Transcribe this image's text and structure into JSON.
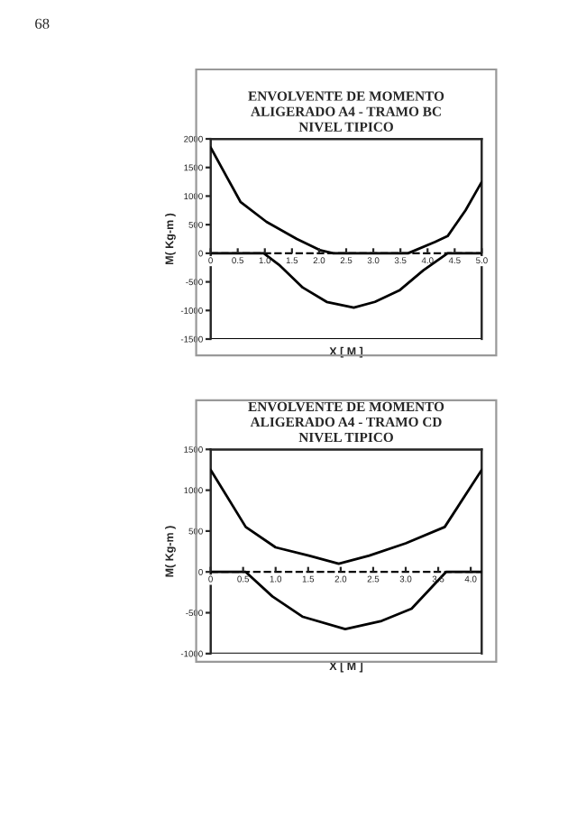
{
  "chart_data": [
    {
      "type": "line",
      "title": "ENVOLVENTE DE MOMENTO\nALIGERADO A4 - TRAMO BC\nNIVEL TIPICO",
      "xlabel": "X [ M ]",
      "ylabel": "M( Kg-m )",
      "annotations": [
        "68"
      ],
      "series": [
        {
          "color": "#000000",
          "x": [
            0,
            0.55,
            1.03,
            1.59,
            2.03,
            2.26,
            3.64,
            4.14,
            4.37,
            4.7,
            5.0
          ],
          "values": [
            1850,
            900,
            550,
            250,
            50,
            0,
            0,
            200,
            300,
            750,
            1250
          ]
        },
        {
          "color": "#000000",
          "x": [
            0,
            0.98,
            1.26,
            1.7,
            2.14,
            2.64,
            3.03,
            3.48,
            3.92,
            4.37,
            5.0
          ],
          "values": [
            0,
            0,
            -200,
            -600,
            -850,
            -950,
            -850,
            -650,
            -300,
            0,
            0
          ]
        }
      ],
      "xlim": [
        0,
        5.0
      ],
      "xticks": [
        {
          "value": 0,
          "label": "0"
        },
        0.5,
        {
          "value": 1,
          "label": "1.0"
        },
        1.5,
        {
          "value": 2,
          "label": "2.0"
        },
        2.5,
        {
          "value": 3,
          "label": "3.0"
        },
        3.5,
        {
          "value": 4,
          "label": "4.0"
        },
        4.5,
        {
          "value": 5,
          "label": "5.0"
        }
      ],
      "ylim": [
        -1500,
        2000
      ],
      "yticks": [
        -1500,
        -1000,
        -500,
        0,
        500,
        1000,
        1500,
        2000
      ],
      "grid": false,
      "legend": false,
      "marker": "none",
      "line_style": "solid",
      "ref_lines": [
        {
          "axis": "y",
          "value": 0,
          "line_style": "dashed",
          "color": "#000000"
        }
      ]
    },
    {
      "type": "line",
      "title": "ENVOLVENTE DE MOMENTO\nALIGERADO A4 - TRAMO CD\nNIVEL TIPICO",
      "xlabel": "X [ M ]",
      "ylabel": "M( Kg-m )",
      "series": [
        {
          "color": "#000000",
          "x": [
            0,
            0.54,
            1.0,
            1.51,
            1.97,
            2.44,
            3.0,
            3.6,
            4.17
          ],
          "values": [
            1250,
            550,
            300,
            200,
            100,
            200,
            350,
            550,
            1250
          ]
        },
        {
          "color": "#000000",
          "x": [
            0,
            0.54,
            0.95,
            1.42,
            2.07,
            2.63,
            3.09,
            3.62,
            4.17
          ],
          "values": [
            0,
            0,
            -300,
            -550,
            -700,
            -600,
            -450,
            0,
            0
          ]
        }
      ],
      "xlim": [
        0,
        4.17
      ],
      "xticks": [
        {
          "value": 0,
          "label": "0"
        },
        0.5,
        {
          "value": 1,
          "label": "1.0"
        },
        1.5,
        {
          "value": 2,
          "label": "2.0"
        },
        2.5,
        {
          "value": 3,
          "label": "3.0"
        },
        3.5,
        {
          "value": 4,
          "label": "4.0"
        }
      ],
      "ylim": [
        -1000,
        1500
      ],
      "yticks": [
        -1000,
        -500,
        0,
        500,
        1000,
        1500
      ],
      "grid": false,
      "legend": false,
      "marker": "none",
      "line_style": "solid",
      "ref_lines": [
        {
          "axis": "y",
          "value": 0,
          "line_style": "dashed",
          "color": "#000000"
        }
      ]
    }
  ]
}
